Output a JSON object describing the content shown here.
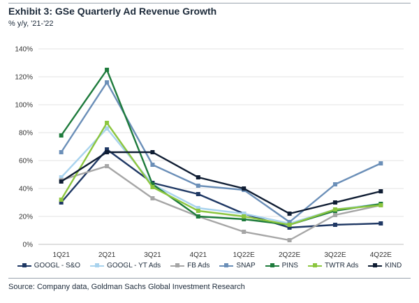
{
  "header": {
    "title": "Exhibit 3: GSe Quarterly Ad Revenue Growth",
    "subtitle": "% y/y, '21-'22"
  },
  "footer": {
    "source": "Source: Company data, Goldman Sachs Global Investment Research"
  },
  "chart_data": {
    "type": "line",
    "categories": [
      "1Q21",
      "2Q21",
      "3Q21",
      "4Q21",
      "1Q22E",
      "2Q22E",
      "3Q22E",
      "4Q22E"
    ],
    "y_ticks": [
      "0%",
      "20%",
      "40%",
      "60%",
      "80%",
      "100%",
      "120%",
      "140%"
    ],
    "ylim": [
      0,
      140
    ],
    "grid": true,
    "legend_position": "bottom",
    "series": [
      {
        "name": "GOOGL - S&O",
        "color": "#1f3864",
        "values": [
          30,
          68,
          44,
          36,
          22,
          12,
          14,
          15
        ]
      },
      {
        "name": "GOOGL - YT Ads",
        "color": "#a9d3ee",
        "values": [
          48,
          83,
          43,
          26,
          22,
          15,
          25,
          29
        ]
      },
      {
        "name": "FB Ads",
        "color": "#a6a6a6",
        "values": [
          46,
          56,
          33,
          20,
          9,
          3,
          21,
          28
        ]
      },
      {
        "name": "SNAP",
        "color": "#6b8fb8",
        "values": [
          66,
          116,
          57,
          42,
          39,
          16,
          43,
          58
        ]
      },
      {
        "name": "PINS",
        "color": "#1e7b3c",
        "values": [
          78,
          125,
          43,
          20,
          18,
          14,
          24,
          29
        ]
      },
      {
        "name": "TWTR Ads",
        "color": "#8cc63f",
        "values": [
          32,
          87,
          41,
          24,
          20,
          14,
          25,
          28
        ]
      },
      {
        "name": "KIND",
        "color": "#0f1d33",
        "values": [
          45,
          66,
          66,
          48,
          40,
          22,
          30,
          38
        ]
      }
    ]
  }
}
